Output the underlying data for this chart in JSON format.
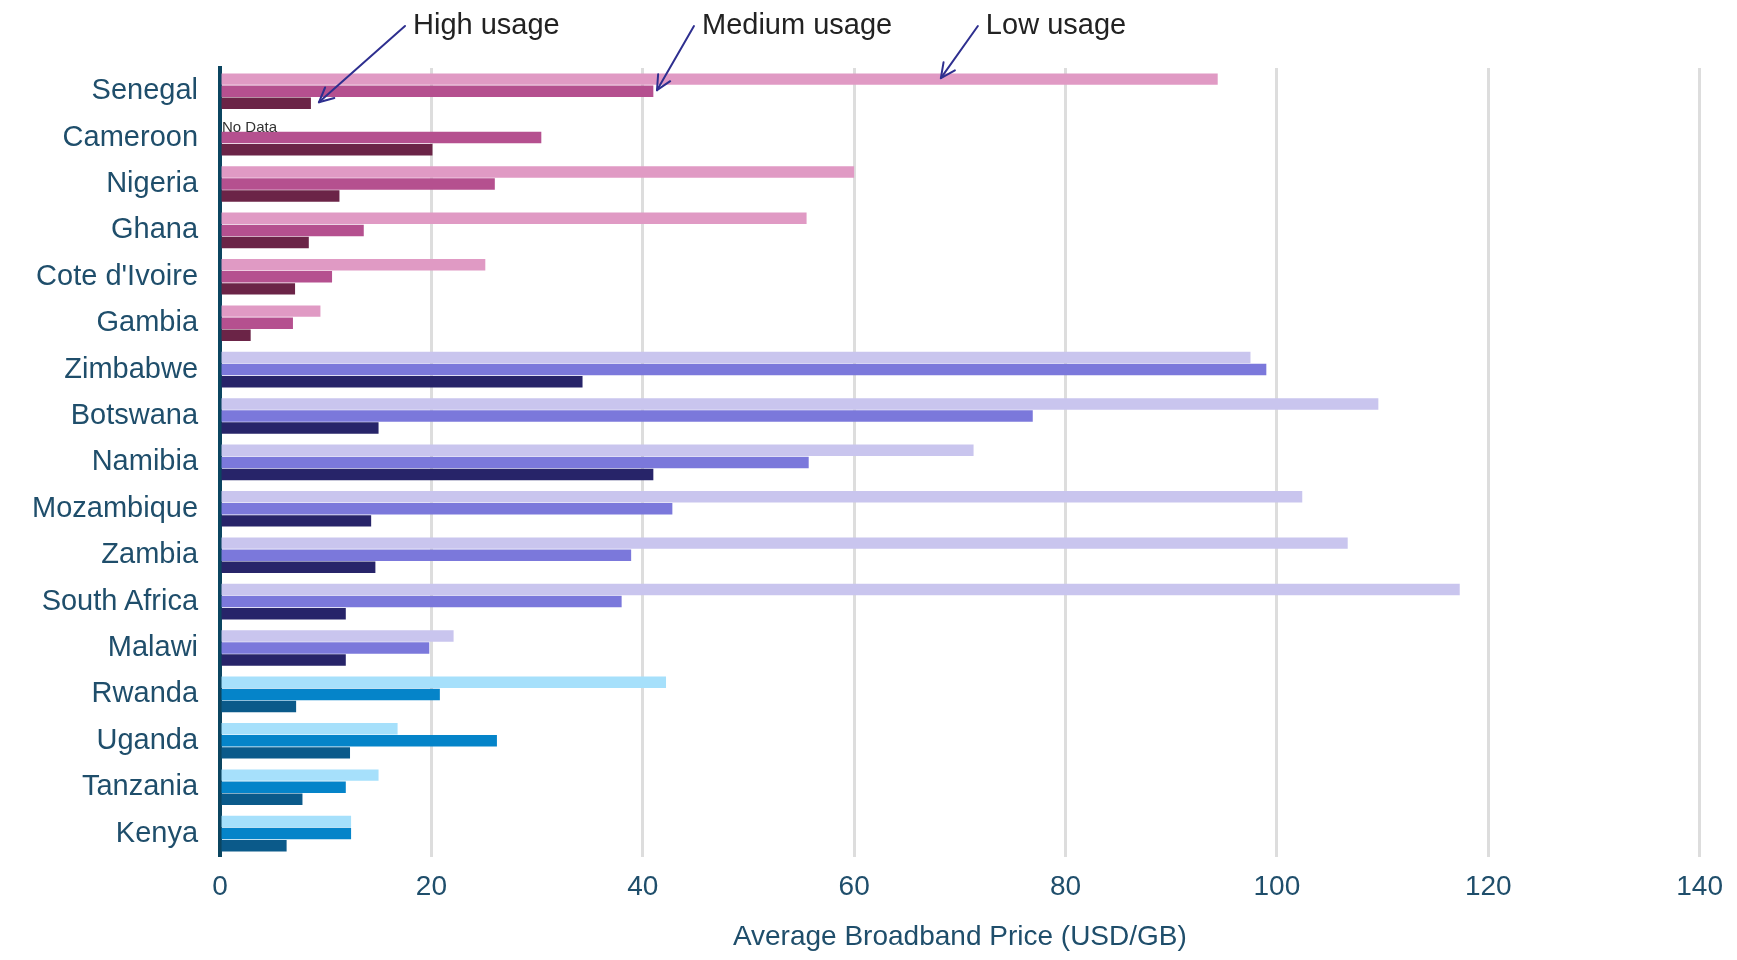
{
  "chart_data": {
    "type": "bar",
    "orientation": "horizontal",
    "categories": [
      "Senegal",
      "Cameroon",
      "Nigeria",
      "Ghana",
      "Cote d'Ivoire",
      "Gambia",
      "Zimbabwe",
      "Botswana",
      "Namibia",
      "Mozambique",
      "Zambia",
      "South Africa",
      "Malawi",
      "Rwanda",
      "Uganda",
      "Tanzania",
      "Kenya"
    ],
    "series": [
      {
        "name": "Low usage",
        "colors": [
          "#e09ac4",
          "#e09ac4",
          "#e09ac4",
          "#e09ac4",
          "#e09ac4",
          "#e09ac4",
          "#c9c5ee",
          "#c9c5ee",
          "#c9c5ee",
          "#c9c5ee",
          "#c9c5ee",
          "#c9c5ee",
          "#c9c5ee",
          "#a6e0fb",
          "#a6e0fb",
          "#a6e0fb",
          "#a6e0fb"
        ],
        "values": [
          94.4,
          null,
          60,
          55.5,
          25.1,
          9.5,
          97.5,
          109.6,
          71.3,
          102.4,
          106.7,
          117.3,
          22.1,
          42.2,
          16.8,
          15,
          12.4
        ]
      },
      {
        "name": "Medium usage",
        "colors": [
          "#b5508f",
          "#b5508f",
          "#b5508f",
          "#b5508f",
          "#b5508f",
          "#b5508f",
          "#7b78db",
          "#7b78db",
          "#7b78db",
          "#7b78db",
          "#7b78db",
          "#7b78db",
          "#7b78db",
          "#0584c9",
          "#0584c9",
          "#0584c9",
          "#0584c9"
        ],
        "values": [
          41,
          30.4,
          26,
          13.6,
          10.6,
          6.9,
          99,
          76.9,
          55.7,
          42.8,
          38.9,
          38,
          19.8,
          20.8,
          26.2,
          11.9,
          12.4
        ]
      },
      {
        "name": "High usage",
        "colors": [
          "#6b2447",
          "#6b2447",
          "#6b2447",
          "#6b2447",
          "#6b2447",
          "#6b2447",
          "#272469",
          "#272469",
          "#272469",
          "#272469",
          "#272469",
          "#272469",
          "#272469",
          "#0b5a8a",
          "#0b5a8a",
          "#0b5a8a",
          "#0b5a8a"
        ],
        "values": [
          8.6,
          20.1,
          11.3,
          8.4,
          7.1,
          2.9,
          34.3,
          15,
          41,
          14.3,
          14.7,
          11.9,
          11.9,
          7.2,
          12.3,
          7.8,
          6.3
        ]
      }
    ],
    "xlabel": "Average Broadband Price (USD/GB)",
    "xlim": [
      0,
      140
    ],
    "xticks": [
      0,
      20,
      40,
      60,
      80,
      100,
      120,
      140
    ],
    "grid": "x",
    "legend": false,
    "annotations": [
      {
        "text": "No Data",
        "x": 0,
        "y": "Cameroon"
      }
    ]
  }
}
